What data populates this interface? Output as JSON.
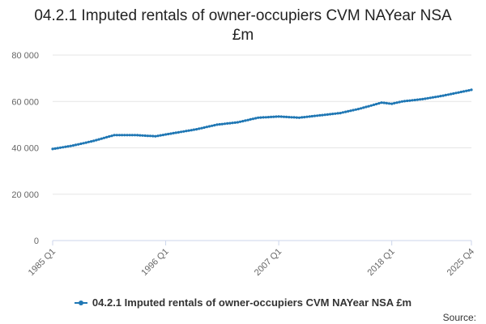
{
  "chart_data": {
    "type": "line",
    "title": "04.2.1 Imputed rentals of owner-occupiers CVM NAYear NSA £m",
    "xlabel": "",
    "ylabel": "",
    "ylim": [
      0,
      80000
    ],
    "y_ticks": [
      0,
      20000,
      40000,
      60000,
      80000
    ],
    "y_tick_labels": [
      "0",
      "20 000",
      "40 000",
      "60 000",
      "80 000"
    ],
    "x_range": [
      "1985 Q1",
      "2025 Q4"
    ],
    "x_ticks": [
      "1985 Q1",
      "1996 Q1",
      "2007 Q1",
      "2018 Q1",
      "2025 Q4"
    ],
    "grid": true,
    "legend_position": "bottom",
    "colors": {
      "series": "#1f77b4",
      "grid": "#e6e6e6",
      "axis": "#ccd6eb"
    },
    "series": [
      {
        "name": "04.2.1 Imputed rentals of owner-occupiers CVM NAYear NSA £m",
        "x": [
          "1985 Q1",
          "1987 Q1",
          "1989 Q1",
          "1991 Q1",
          "1993 Q1",
          "1995 Q1",
          "1997 Q1",
          "1999 Q1",
          "2001 Q1",
          "2003 Q1",
          "2005 Q1",
          "2007 Q1",
          "2009 Q1",
          "2011 Q1",
          "2013 Q1",
          "2015 Q1",
          "2017 Q1",
          "2018 Q1",
          "2019 Q1",
          "2021 Q1",
          "2023 Q1",
          "2025 Q4"
        ],
        "values": [
          39500,
          41000,
          43000,
          45500,
          45500,
          45000,
          46500,
          48000,
          50000,
          51000,
          53000,
          53500,
          53000,
          54000,
          55000,
          57000,
          59500,
          59000,
          60000,
          61000,
          62500,
          65000
        ]
      }
    ]
  },
  "legend": {
    "label": "04.2.1 Imputed rentals of owner-occupiers CVM NAYear NSA £m"
  },
  "footer": {
    "source_label": "Source:"
  }
}
